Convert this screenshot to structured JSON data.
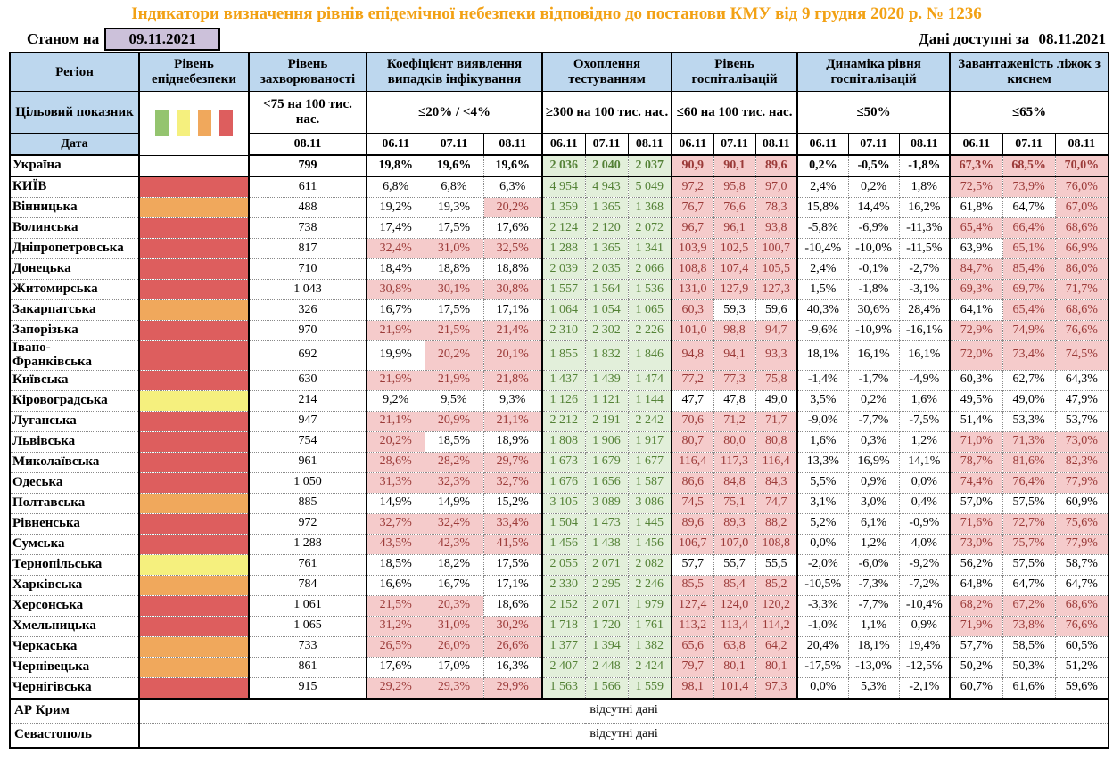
{
  "title": "Індикатори визначення рівнів епідемічної небезпеки відповідно до постанови КМУ від 9 грудня 2020 р. № 1236",
  "as_of_label": "Станом на",
  "as_of_date": "09.11.2021",
  "data_available_label": "Дані доступні за",
  "data_available_date": "08.11.2021",
  "no_data_text": "відсутні дані",
  "columns": {
    "region_label": "Регіон",
    "target_row_label": "Цільовий показник",
    "date_row_label": "Дата",
    "groups": [
      {
        "label": "Рівень епіднебезпеки",
        "target": "",
        "dates": []
      },
      {
        "label": "Рівень захворюваності",
        "target": "<75 на 100 тис. нас.",
        "dates": [
          "08.11"
        ]
      },
      {
        "label": "Коефіцієнт виявлення випадків інфікування",
        "target": "≤20% / <4%",
        "dates": [
          "06.11",
          "07.11",
          "08.11"
        ]
      },
      {
        "label": "Охоплення тестуванням",
        "target": "≥300 на 100 тис. нас.",
        "dates": [
          "06.11",
          "07.11",
          "08.11"
        ]
      },
      {
        "label": "Рівень госпіталізацій",
        "target": "≤60 на 100 тис. нас.",
        "dates": [
          "06.11",
          "07.11",
          "08.11"
        ]
      },
      {
        "label": "Динаміка рівня госпіталізацій",
        "target": "≤50%",
        "dates": [
          "06.11",
          "07.11",
          "08.11"
        ]
      },
      {
        "label": "Завантаженість ліжок з киснем",
        "target": "≤65%",
        "dates": [
          "06.11",
          "07.11",
          "08.11"
        ]
      }
    ]
  },
  "thresholds": {
    "detection_pct": 20,
    "hospitalization": 60,
    "bed_occupancy_pct": 65
  },
  "legend_colors_order": [
    "green",
    "yellow",
    "orange",
    "red"
  ],
  "rows": [
    {
      "region": "Україна",
      "is_total": true,
      "danger": "",
      "incidence": "799",
      "detection": [
        "19,8%",
        "19,6%",
        "19,6%"
      ],
      "testing": [
        "2 036",
        "2 040",
        "2 037"
      ],
      "hospitalization": [
        "90,9",
        "90,1",
        "89,6"
      ],
      "dynamics": [
        "0,2%",
        "-0,5%",
        "-1,8%"
      ],
      "bed_occupancy": [
        "67,3%",
        "68,5%",
        "70,0%"
      ]
    },
    {
      "region": "КИЇВ",
      "is_total": false,
      "danger": "red",
      "incidence": "611",
      "detection": [
        "6,8%",
        "6,8%",
        "6,3%"
      ],
      "testing": [
        "4 954",
        "4 943",
        "5 049"
      ],
      "hospitalization": [
        "97,2",
        "95,8",
        "97,0"
      ],
      "dynamics": [
        "2,4%",
        "0,2%",
        "1,8%"
      ],
      "bed_occupancy": [
        "72,5%",
        "73,9%",
        "76,0%"
      ]
    },
    {
      "region": "Вінницька",
      "is_total": false,
      "danger": "orange",
      "incidence": "488",
      "detection": [
        "19,2%",
        "19,3%",
        "20,2%"
      ],
      "testing": [
        "1 359",
        "1 365",
        "1 368"
      ],
      "hospitalization": [
        "76,7",
        "76,6",
        "78,3"
      ],
      "dynamics": [
        "15,8%",
        "14,4%",
        "16,2%"
      ],
      "bed_occupancy": [
        "61,8%",
        "64,7%",
        "67,0%"
      ]
    },
    {
      "region": "Волинська",
      "is_total": false,
      "danger": "red",
      "incidence": "738",
      "detection": [
        "17,4%",
        "17,5%",
        "17,6%"
      ],
      "testing": [
        "2 124",
        "2 120",
        "2 072"
      ],
      "hospitalization": [
        "96,7",
        "96,1",
        "93,8"
      ],
      "dynamics": [
        "-5,8%",
        "-6,9%",
        "-11,3%"
      ],
      "bed_occupancy": [
        "65,4%",
        "66,4%",
        "68,6%"
      ]
    },
    {
      "region": "Дніпропетровська",
      "is_total": false,
      "danger": "red",
      "incidence": "817",
      "detection": [
        "32,4%",
        "31,0%",
        "32,5%"
      ],
      "testing": [
        "1 288",
        "1 365",
        "1 341"
      ],
      "hospitalization": [
        "103,9",
        "102,5",
        "100,7"
      ],
      "dynamics": [
        "-10,4%",
        "-10,0%",
        "-11,5%"
      ],
      "bed_occupancy": [
        "63,9%",
        "65,1%",
        "66,9%"
      ]
    },
    {
      "region": "Донецька",
      "is_total": false,
      "danger": "red",
      "incidence": "710",
      "detection": [
        "18,4%",
        "18,8%",
        "18,8%"
      ],
      "testing": [
        "2 039",
        "2 035",
        "2 066"
      ],
      "hospitalization": [
        "108,8",
        "107,4",
        "105,5"
      ],
      "dynamics": [
        "2,4%",
        "-0,1%",
        "-2,7%"
      ],
      "bed_occupancy": [
        "84,7%",
        "85,4%",
        "86,0%"
      ]
    },
    {
      "region": "Житомирська",
      "is_total": false,
      "danger": "red",
      "incidence": "1 043",
      "detection": [
        "30,8%",
        "30,1%",
        "30,8%"
      ],
      "testing": [
        "1 557",
        "1 564",
        "1 536"
      ],
      "hospitalization": [
        "131,0",
        "127,9",
        "127,3"
      ],
      "dynamics": [
        "1,5%",
        "-1,8%",
        "-3,1%"
      ],
      "bed_occupancy": [
        "69,3%",
        "69,7%",
        "71,7%"
      ]
    },
    {
      "region": "Закарпатська",
      "is_total": false,
      "danger": "orange",
      "incidence": "326",
      "detection": [
        "16,7%",
        "17,5%",
        "17,1%"
      ],
      "testing": [
        "1 064",
        "1 054",
        "1 065"
      ],
      "hospitalization": [
        "60,3",
        "59,3",
        "59,6"
      ],
      "dynamics": [
        "40,3%",
        "30,6%",
        "28,4%"
      ],
      "bed_occupancy": [
        "64,1%",
        "65,4%",
        "68,6%"
      ]
    },
    {
      "region": "Запорізька",
      "is_total": false,
      "danger": "red",
      "incidence": "970",
      "detection": [
        "21,9%",
        "21,5%",
        "21,4%"
      ],
      "testing": [
        "2 310",
        "2 302",
        "2 226"
      ],
      "hospitalization": [
        "101,0",
        "98,8",
        "94,7"
      ],
      "dynamics": [
        "-9,6%",
        "-10,9%",
        "-16,1%"
      ],
      "bed_occupancy": [
        "72,9%",
        "74,9%",
        "76,6%"
      ]
    },
    {
      "region": "Івано-Франківська",
      "is_total": false,
      "danger": "red",
      "incidence": "692",
      "detection": [
        "19,9%",
        "20,2%",
        "20,1%"
      ],
      "testing": [
        "1 855",
        "1 832",
        "1 846"
      ],
      "hospitalization": [
        "94,8",
        "94,1",
        "93,3"
      ],
      "dynamics": [
        "18,1%",
        "16,1%",
        "16,1%"
      ],
      "bed_occupancy": [
        "72,0%",
        "73,4%",
        "74,5%"
      ]
    },
    {
      "region": "Київська",
      "is_total": false,
      "danger": "red",
      "incidence": "630",
      "detection": [
        "21,9%",
        "21,9%",
        "21,8%"
      ],
      "testing": [
        "1 437",
        "1 439",
        "1 474"
      ],
      "hospitalization": [
        "77,2",
        "77,3",
        "75,8"
      ],
      "dynamics": [
        "-1,4%",
        "-1,7%",
        "-4,9%"
      ],
      "bed_occupancy": [
        "60,3%",
        "62,7%",
        "64,3%"
      ]
    },
    {
      "region": "Кіровоградська",
      "is_total": false,
      "danger": "yellow",
      "incidence": "214",
      "detection": [
        "9,2%",
        "9,5%",
        "9,3%"
      ],
      "testing": [
        "1 126",
        "1 121",
        "1 144"
      ],
      "hospitalization": [
        "47,7",
        "47,8",
        "49,0"
      ],
      "dynamics": [
        "3,5%",
        "0,2%",
        "1,6%"
      ],
      "bed_occupancy": [
        "49,5%",
        "49,0%",
        "47,9%"
      ]
    },
    {
      "region": "Луганська",
      "is_total": false,
      "danger": "red",
      "incidence": "947",
      "detection": [
        "21,1%",
        "20,9%",
        "21,1%"
      ],
      "testing": [
        "2 212",
        "2 191",
        "2 242"
      ],
      "hospitalization": [
        "70,6",
        "71,2",
        "71,7"
      ],
      "dynamics": [
        "-9,0%",
        "-7,7%",
        "-7,5%"
      ],
      "bed_occupancy": [
        "51,4%",
        "53,3%",
        "53,7%"
      ]
    },
    {
      "region": "Львівська",
      "is_total": false,
      "danger": "red",
      "incidence": "754",
      "detection": [
        "20,2%",
        "18,5%",
        "18,9%"
      ],
      "testing": [
        "1 808",
        "1 906",
        "1 917"
      ],
      "hospitalization": [
        "80,7",
        "80,0",
        "80,8"
      ],
      "dynamics": [
        "1,6%",
        "0,3%",
        "1,2%"
      ],
      "bed_occupancy": [
        "71,0%",
        "71,3%",
        "73,0%"
      ]
    },
    {
      "region": "Миколаївська",
      "is_total": false,
      "danger": "red",
      "incidence": "961",
      "detection": [
        "28,6%",
        "28,2%",
        "29,7%"
      ],
      "testing": [
        "1 673",
        "1 679",
        "1 677"
      ],
      "hospitalization": [
        "116,4",
        "117,3",
        "116,4"
      ],
      "dynamics": [
        "13,3%",
        "16,9%",
        "14,1%"
      ],
      "bed_occupancy": [
        "78,7%",
        "81,6%",
        "82,3%"
      ]
    },
    {
      "region": "Одеська",
      "is_total": false,
      "danger": "red",
      "incidence": "1 050",
      "detection": [
        "31,3%",
        "32,3%",
        "32,7%"
      ],
      "testing": [
        "1 676",
        "1 656",
        "1 587"
      ],
      "hospitalization": [
        "86,6",
        "84,8",
        "84,3"
      ],
      "dynamics": [
        "5,5%",
        "0,9%",
        "0,0%"
      ],
      "bed_occupancy": [
        "74,4%",
        "76,4%",
        "77,9%"
      ]
    },
    {
      "region": "Полтавська",
      "is_total": false,
      "danger": "orange",
      "incidence": "885",
      "detection": [
        "14,9%",
        "14,9%",
        "15,2%"
      ],
      "testing": [
        "3 105",
        "3 089",
        "3 086"
      ],
      "hospitalization": [
        "74,5",
        "75,1",
        "74,7"
      ],
      "dynamics": [
        "3,1%",
        "3,0%",
        "0,4%"
      ],
      "bed_occupancy": [
        "57,0%",
        "57,5%",
        "60,9%"
      ]
    },
    {
      "region": "Рівненська",
      "is_total": false,
      "danger": "red",
      "incidence": "972",
      "detection": [
        "32,7%",
        "32,4%",
        "33,4%"
      ],
      "testing": [
        "1 504",
        "1 473",
        "1 445"
      ],
      "hospitalization": [
        "89,6",
        "89,3",
        "88,2"
      ],
      "dynamics": [
        "5,2%",
        "6,1%",
        "-0,9%"
      ],
      "bed_occupancy": [
        "71,6%",
        "72,7%",
        "75,6%"
      ]
    },
    {
      "region": "Сумська",
      "is_total": false,
      "danger": "red",
      "incidence": "1 288",
      "detection": [
        "43,5%",
        "42,3%",
        "41,5%"
      ],
      "testing": [
        "1 456",
        "1 438",
        "1 456"
      ],
      "hospitalization": [
        "106,7",
        "107,0",
        "108,8"
      ],
      "dynamics": [
        "0,0%",
        "1,2%",
        "4,0%"
      ],
      "bed_occupancy": [
        "73,0%",
        "75,7%",
        "77,9%"
      ]
    },
    {
      "region": "Тернопільська",
      "is_total": false,
      "danger": "yellow",
      "incidence": "761",
      "detection": [
        "18,5%",
        "18,2%",
        "17,5%"
      ],
      "testing": [
        "2 055",
        "2 071",
        "2 082"
      ],
      "hospitalization": [
        "57,7",
        "55,7",
        "55,5"
      ],
      "dynamics": [
        "-2,0%",
        "-6,0%",
        "-9,2%"
      ],
      "bed_occupancy": [
        "56,2%",
        "57,5%",
        "58,7%"
      ]
    },
    {
      "region": "Харківська",
      "is_total": false,
      "danger": "orange",
      "incidence": "784",
      "detection": [
        "16,6%",
        "16,7%",
        "17,1%"
      ],
      "testing": [
        "2 330",
        "2 295",
        "2 246"
      ],
      "hospitalization": [
        "85,5",
        "85,4",
        "85,2"
      ],
      "dynamics": [
        "-10,5%",
        "-7,3%",
        "-7,2%"
      ],
      "bed_occupancy": [
        "64,8%",
        "64,7%",
        "64,7%"
      ]
    },
    {
      "region": "Херсонська",
      "is_total": false,
      "danger": "red",
      "incidence": "1 061",
      "detection": [
        "21,5%",
        "20,3%",
        "18,6%"
      ],
      "testing": [
        "2 152",
        "2 071",
        "1 979"
      ],
      "hospitalization": [
        "127,4",
        "124,0",
        "120,2"
      ],
      "dynamics": [
        "-3,3%",
        "-7,7%",
        "-10,4%"
      ],
      "bed_occupancy": [
        "68,2%",
        "67,2%",
        "68,6%"
      ]
    },
    {
      "region": "Хмельницька",
      "is_total": false,
      "danger": "red",
      "incidence": "1 065",
      "detection": [
        "31,2%",
        "31,0%",
        "30,2%"
      ],
      "testing": [
        "1 718",
        "1 720",
        "1 761"
      ],
      "hospitalization": [
        "113,2",
        "113,4",
        "114,2"
      ],
      "dynamics": [
        "-1,0%",
        "1,1%",
        "0,9%"
      ],
      "bed_occupancy": [
        "71,9%",
        "73,8%",
        "76,6%"
      ]
    },
    {
      "region": "Черкаська",
      "is_total": false,
      "danger": "orange",
      "incidence": "733",
      "detection": [
        "26,5%",
        "26,0%",
        "26,6%"
      ],
      "testing": [
        "1 377",
        "1 394",
        "1 382"
      ],
      "hospitalization": [
        "65,6",
        "63,8",
        "64,2"
      ],
      "dynamics": [
        "20,4%",
        "18,1%",
        "19,4%"
      ],
      "bed_occupancy": [
        "57,7%",
        "58,5%",
        "60,5%"
      ]
    },
    {
      "region": "Чернівецька",
      "is_total": false,
      "danger": "orange",
      "incidence": "861",
      "detection": [
        "17,6%",
        "17,0%",
        "16,3%"
      ],
      "testing": [
        "2 407",
        "2 448",
        "2 424"
      ],
      "hospitalization": [
        "79,7",
        "80,1",
        "80,1"
      ],
      "dynamics": [
        "-17,5%",
        "-13,0%",
        "-12,5%"
      ],
      "bed_occupancy": [
        "50,2%",
        "50,3%",
        "51,2%"
      ]
    },
    {
      "region": "Чернігівська",
      "is_total": false,
      "danger": "red",
      "incidence": "915",
      "detection": [
        "29,2%",
        "29,3%",
        "29,9%"
      ],
      "testing": [
        "1 563",
        "1 566",
        "1 559"
      ],
      "hospitalization": [
        "98,1",
        "101,4",
        "97,3"
      ],
      "dynamics": [
        "0,0%",
        "5,3%",
        "-2,1%"
      ],
      "bed_occupancy": [
        "60,7%",
        "61,6%",
        "59,6%"
      ]
    }
  ],
  "no_data_rows": [
    "АР Крим",
    "Севастополь"
  ],
  "colors": {
    "title_orange": "#F2A114",
    "header_blue": "#BDD7EE",
    "date_lavender": "#CCC1DA",
    "danger_red": "#DD5E5E",
    "danger_orange": "#F0A85C",
    "danger_yellow": "#F5F07E",
    "legend_green": "#94C46F",
    "cell_pink": "#F5CBCB",
    "cell_green": "#E2EFDA",
    "text_red": "#9B3A38",
    "text_green": "#538135"
  }
}
